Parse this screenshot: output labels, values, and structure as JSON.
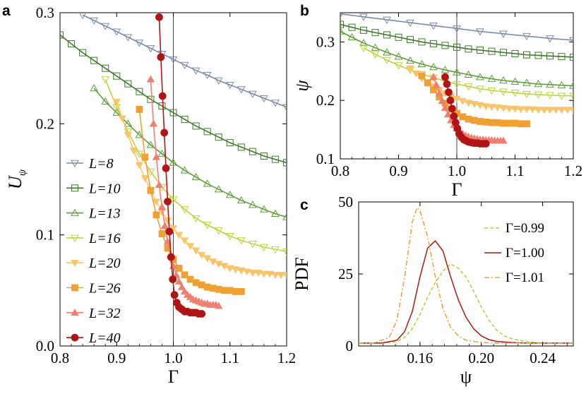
{
  "colors": {
    "L8": "#7b8aa6",
    "L10": "#3f7a2a",
    "L13": "#5f9e3a",
    "L16": "#bfd33a",
    "L20": "#f9c46a",
    "L26": "#f0a030",
    "L32": "#ee8070",
    "L40": "#b01515",
    "pdf099": "#b5cc3a",
    "pdf100": "#b01515",
    "pdf101": "#e8a030"
  },
  "panels": {
    "a": "a",
    "b": "b",
    "c": "c"
  },
  "chart_data": [
    {
      "id": "a",
      "type": "line",
      "xlabel": "Γ",
      "ylabel": "U",
      "ylabel_sub": "ψ",
      "xlim": [
        0.8,
        1.2
      ],
      "ylim": [
        0.0,
        0.3
      ],
      "xticks": [
        "0.8",
        "0.9",
        "1.0",
        "1.1",
        "1.2"
      ],
      "yticks": [
        "0.0",
        "0.1",
        "0.2",
        "0.3"
      ],
      "vline": 1.0,
      "legend_position": "left",
      "series": [
        {
          "L": 8,
          "label": "L=8",
          "color_key": "L8",
          "marker": "triangle-down-open",
          "x": [
            0.84,
            0.86,
            0.88,
            0.9,
            0.92,
            0.94,
            0.96,
            0.98,
            1.0,
            1.02,
            1.04,
            1.06,
            1.08,
            1.1,
            1.12,
            1.14,
            1.16,
            1.18,
            1.2
          ],
          "y": [
            0.298,
            0.293,
            0.288,
            0.283,
            0.278,
            0.273,
            0.268,
            0.263,
            0.258,
            0.253,
            0.248,
            0.244,
            0.239,
            0.235,
            0.231,
            0.227,
            0.223,
            0.219,
            0.215
          ]
        },
        {
          "L": 10,
          "label": "L=10",
          "color_key": "L10",
          "marker": "square-open",
          "x": [
            0.8,
            0.82,
            0.84,
            0.86,
            0.88,
            0.9,
            0.92,
            0.94,
            0.96,
            0.98,
            1.0,
            1.02,
            1.04,
            1.06,
            1.08,
            1.1,
            1.12,
            1.14,
            1.16,
            1.18,
            1.2
          ],
          "y": [
            0.28,
            0.272,
            0.264,
            0.257,
            0.25,
            0.243,
            0.236,
            0.229,
            0.222,
            0.216,
            0.21,
            0.204,
            0.198,
            0.193,
            0.188,
            0.183,
            0.179,
            0.175,
            0.171,
            0.168,
            0.165
          ]
        },
        {
          "L": 13,
          "label": "L=13",
          "color_key": "L13",
          "marker": "triangle-up-open",
          "x": [
            0.86,
            0.88,
            0.9,
            0.92,
            0.94,
            0.96,
            0.98,
            1.0,
            1.02,
            1.04,
            1.06,
            1.08,
            1.1,
            1.12,
            1.14,
            1.16,
            1.18,
            1.2
          ],
          "y": [
            0.232,
            0.22,
            0.21,
            0.2,
            0.19,
            0.181,
            0.173,
            0.165,
            0.158,
            0.152,
            0.146,
            0.141,
            0.136,
            0.131,
            0.127,
            0.123,
            0.119,
            0.116
          ]
        },
        {
          "L": 16,
          "label": "L=16",
          "color_key": "L16",
          "marker": "triangle-down-open",
          "x": [
            0.88,
            0.9,
            0.92,
            0.94,
            0.96,
            0.98,
            1.0,
            1.02,
            1.04,
            1.06,
            1.08,
            1.1,
            1.12,
            1.14,
            1.16,
            1.18,
            1.2
          ],
          "y": [
            0.24,
            0.215,
            0.193,
            0.173,
            0.157,
            0.143,
            0.132,
            0.123,
            0.115,
            0.109,
            0.104,
            0.099,
            0.095,
            0.092,
            0.089,
            0.087,
            0.085
          ]
        },
        {
          "L": 20,
          "label": "L=20",
          "color_key": "L20",
          "marker": "triangle-down-filled",
          "x": [
            0.9,
            0.91,
            0.92,
            0.93,
            0.94,
            0.95,
            0.96,
            0.97,
            0.98,
            0.99,
            1.0,
            1.01,
            1.02,
            1.03,
            1.04,
            1.05,
            1.06,
            1.07,
            1.08,
            1.09,
            1.1,
            1.11,
            1.12,
            1.13,
            1.14,
            1.15,
            1.16,
            1.17,
            1.18,
            1.19,
            1.2
          ],
          "y": [
            0.22,
            0.205,
            0.19,
            0.176,
            0.163,
            0.151,
            0.14,
            0.13,
            0.121,
            0.113,
            0.106,
            0.1,
            0.095,
            0.09,
            0.086,
            0.082,
            0.079,
            0.076,
            0.074,
            0.072,
            0.07,
            0.069,
            0.068,
            0.067,
            0.066,
            0.066,
            0.065,
            0.065,
            0.064,
            0.064,
            0.064
          ]
        },
        {
          "L": 26,
          "label": "L=26",
          "color_key": "L26",
          "marker": "square-filled",
          "x": [
            0.94,
            0.95,
            0.96,
            0.97,
            0.98,
            0.99,
            1.0,
            1.01,
            1.02,
            1.03,
            1.04,
            1.05,
            1.06,
            1.07,
            1.08,
            1.09,
            1.1,
            1.11,
            1.12
          ],
          "y": [
            0.213,
            0.17,
            0.14,
            0.118,
            0.101,
            0.088,
            0.078,
            0.07,
            0.064,
            0.06,
            0.057,
            0.055,
            0.053,
            0.052,
            0.051,
            0.05,
            0.05,
            0.049,
            0.049
          ]
        },
        {
          "L": 32,
          "label": "L=32",
          "color_key": "L32",
          "marker": "triangle-up-filled",
          "x": [
            0.96,
            0.965,
            0.97,
            0.975,
            0.98,
            0.985,
            0.99,
            0.995,
            1.0,
            1.005,
            1.01,
            1.015,
            1.02,
            1.025,
            1.03,
            1.035,
            1.04,
            1.045,
            1.05,
            1.055,
            1.06,
            1.065,
            1.07,
            1.075,
            1.08
          ],
          "y": [
            0.24,
            0.2,
            0.17,
            0.145,
            0.125,
            0.108,
            0.094,
            0.082,
            0.072,
            0.064,
            0.058,
            0.053,
            0.049,
            0.046,
            0.044,
            0.042,
            0.041,
            0.04,
            0.039,
            0.038,
            0.038,
            0.037,
            0.037,
            0.037,
            0.036
          ]
        },
        {
          "L": 40,
          "label": "L=40",
          "color_key": "L40",
          "marker": "circle-filled",
          "x": [
            0.975,
            0.978,
            0.981,
            0.984,
            0.987,
            0.99,
            0.993,
            0.996,
            0.999,
            1.002,
            1.006,
            1.01,
            1.015,
            1.02,
            1.025,
            1.03,
            1.035,
            1.04,
            1.045,
            1.05
          ],
          "y": [
            0.296,
            0.26,
            0.225,
            0.192,
            0.16,
            0.13,
            0.103,
            0.08,
            0.06,
            0.046,
            0.039,
            0.035,
            0.033,
            0.031,
            0.031,
            0.03,
            0.03,
            0.03,
            0.029,
            0.029
          ]
        }
      ]
    },
    {
      "id": "b",
      "type": "line",
      "xlabel": "Γ",
      "ylabel": "ψ",
      "xlim": [
        0.8,
        1.2
      ],
      "ylim": [
        0.1,
        0.35
      ],
      "xticks": [
        "0.8",
        "0.9",
        "1.0",
        "1.1",
        "1.2"
      ],
      "yticks": [
        "0.1",
        "0.2",
        "0.3"
      ],
      "vline": 1.0,
      "series": [
        {
          "L": 8,
          "color_key": "L8",
          "marker": "triangle-down-open",
          "x": [
            0.8,
            0.84,
            0.88,
            0.92,
            0.96,
            1.0,
            1.04,
            1.08,
            1.12,
            1.16,
            1.2
          ],
          "y": [
            0.348,
            0.343,
            0.338,
            0.333,
            0.328,
            0.323,
            0.318,
            0.314,
            0.31,
            0.306,
            0.303
          ]
        },
        {
          "L": 10,
          "color_key": "L10",
          "marker": "square-open",
          "x": [
            0.8,
            0.82,
            0.84,
            0.86,
            0.88,
            0.9,
            0.92,
            0.94,
            0.96,
            0.98,
            1.0,
            1.02,
            1.04,
            1.06,
            1.08,
            1.1,
            1.12,
            1.14,
            1.16,
            1.18,
            1.2
          ],
          "y": [
            0.33,
            0.325,
            0.32,
            0.316,
            0.312,
            0.308,
            0.304,
            0.3,
            0.297,
            0.294,
            0.291,
            0.288,
            0.286,
            0.284,
            0.282,
            0.28,
            0.278,
            0.277,
            0.276,
            0.275,
            0.274
          ]
        },
        {
          "L": 13,
          "color_key": "L13",
          "marker": "triangle-up-open",
          "x": [
            0.8,
            0.82,
            0.84,
            0.86,
            0.88,
            0.9,
            0.92,
            0.94,
            0.96,
            0.98,
            1.0,
            1.02,
            1.04,
            1.06,
            1.08,
            1.1,
            1.12,
            1.14,
            1.16,
            1.18,
            1.2
          ],
          "y": [
            0.318,
            0.308,
            0.298,
            0.29,
            0.282,
            0.275,
            0.268,
            0.262,
            0.257,
            0.252,
            0.248,
            0.244,
            0.24,
            0.237,
            0.234,
            0.232,
            0.23,
            0.228,
            0.227,
            0.226,
            0.225
          ]
        },
        {
          "L": 16,
          "color_key": "L16",
          "marker": "triangle-down-open",
          "x": [
            0.84,
            0.86,
            0.88,
            0.9,
            0.92,
            0.94,
            0.96,
            0.98,
            1.0,
            1.02,
            1.04,
            1.06,
            1.08,
            1.1,
            1.12,
            1.14,
            1.16,
            1.18,
            1.2
          ],
          "y": [
            0.29,
            0.279,
            0.269,
            0.26,
            0.252,
            0.245,
            0.239,
            0.233,
            0.228,
            0.224,
            0.22,
            0.217,
            0.215,
            0.213,
            0.211,
            0.21,
            0.209,
            0.208,
            0.208
          ]
        },
        {
          "L": 20,
          "color_key": "L20",
          "marker": "triangle-down-filled",
          "x": [
            0.92,
            0.93,
            0.94,
            0.95,
            0.96,
            0.97,
            0.98,
            0.99,
            1.0,
            1.01,
            1.02,
            1.03,
            1.04,
            1.05,
            1.06,
            1.07,
            1.08,
            1.09,
            1.1,
            1.11,
            1.12,
            1.13,
            1.14,
            1.15,
            1.16,
            1.17,
            1.18,
            1.19,
            1.2
          ],
          "y": [
            0.255,
            0.246,
            0.238,
            0.231,
            0.224,
            0.218,
            0.212,
            0.207,
            0.203,
            0.199,
            0.196,
            0.194,
            0.192,
            0.19,
            0.189,
            0.188,
            0.187,
            0.186,
            0.186,
            0.185,
            0.185,
            0.185,
            0.184,
            0.184,
            0.184,
            0.184,
            0.184,
            0.184,
            0.184
          ]
        },
        {
          "L": 26,
          "color_key": "L26",
          "marker": "square-filled",
          "x": [
            0.94,
            0.95,
            0.96,
            0.97,
            0.98,
            0.99,
            1.0,
            1.01,
            1.02,
            1.03,
            1.04,
            1.05,
            1.06,
            1.07,
            1.08,
            1.09,
            1.1,
            1.11,
            1.12
          ],
          "y": [
            0.242,
            0.23,
            0.218,
            0.206,
            0.195,
            0.185,
            0.178,
            0.172,
            0.168,
            0.166,
            0.164,
            0.163,
            0.162,
            0.162,
            0.161,
            0.161,
            0.161,
            0.16,
            0.16
          ]
        },
        {
          "L": 32,
          "color_key": "L32",
          "marker": "triangle-up-filled",
          "x": [
            0.96,
            0.965,
            0.97,
            0.975,
            0.98,
            0.985,
            0.99,
            0.995,
            1.0,
            1.005,
            1.01,
            1.015,
            1.02,
            1.025,
            1.03,
            1.035,
            1.04,
            1.045,
            1.05,
            1.055,
            1.06,
            1.065,
            1.07,
            1.075,
            1.08
          ],
          "y": [
            0.24,
            0.226,
            0.212,
            0.199,
            0.187,
            0.176,
            0.166,
            0.158,
            0.152,
            0.147,
            0.143,
            0.14,
            0.138,
            0.136,
            0.135,
            0.134,
            0.133,
            0.133,
            0.132,
            0.132,
            0.132,
            0.131,
            0.131,
            0.131,
            0.131
          ]
        },
        {
          "L": 40,
          "color_key": "L40",
          "marker": "circle-filled",
          "x": [
            0.98,
            0.983,
            0.986,
            0.989,
            0.992,
            0.995,
            0.998,
            1.001,
            1.004,
            1.008,
            1.012,
            1.016,
            1.02,
            1.025,
            1.03,
            1.035,
            1.04,
            1.045,
            1.05
          ],
          "y": [
            0.24,
            0.228,
            0.214,
            0.2,
            0.186,
            0.173,
            0.162,
            0.152,
            0.143,
            0.137,
            0.133,
            0.131,
            0.129,
            0.128,
            0.127,
            0.127,
            0.126,
            0.126,
            0.126
          ]
        }
      ]
    },
    {
      "id": "c",
      "type": "line",
      "xlabel": "ψ",
      "ylabel": "PDF",
      "xlim": [
        0.12,
        0.26
      ],
      "ylim": [
        0,
        50
      ],
      "xticks": [
        "0.16",
        "0.20",
        "0.24"
      ],
      "yticks": [
        "0",
        "25",
        "50"
      ],
      "legend_position": "top-right",
      "series": [
        {
          "name": "Γ=0.99",
          "color_key": "pdf099",
          "dash": "dashed",
          "x": [
            0.12,
            0.135,
            0.145,
            0.15,
            0.155,
            0.16,
            0.165,
            0.17,
            0.175,
            0.18,
            0.185,
            0.19,
            0.195,
            0.2,
            0.205,
            0.21,
            0.215,
            0.22,
            0.23,
            0.24,
            0.25,
            0.26
          ],
          "y": [
            1,
            1,
            1.5,
            3,
            6,
            11,
            17,
            22,
            26,
            28.5,
            27,
            24,
            19,
            13.5,
            9,
            5.5,
            3.5,
            2.5,
            1.5,
            1,
            1,
            1
          ]
        },
        {
          "name": "Γ=1.00",
          "color_key": "pdf100",
          "dash": "solid",
          "x": [
            0.12,
            0.135,
            0.145,
            0.15,
            0.155,
            0.16,
            0.165,
            0.17,
            0.175,
            0.18,
            0.185,
            0.19,
            0.195,
            0.2,
            0.205,
            0.21,
            0.22,
            0.23,
            0.24,
            0.26
          ],
          "y": [
            1,
            1,
            2,
            5,
            12,
            24,
            34,
            36.5,
            33,
            24,
            16,
            10,
            6,
            3.5,
            2.2,
            1.6,
            1.2,
            1,
            1,
            1
          ]
        },
        {
          "name": "Γ=1.01",
          "color_key": "pdf101",
          "dash": "dashdot",
          "x": [
            0.12,
            0.13,
            0.14,
            0.145,
            0.15,
            0.155,
            0.158,
            0.16,
            0.165,
            0.17,
            0.175,
            0.18,
            0.185,
            0.19,
            0.2,
            0.21,
            0.22,
            0.24,
            0.26
          ],
          "y": [
            1,
            1,
            3,
            9,
            24,
            43,
            48,
            47,
            38,
            24,
            13,
            6.5,
            3.5,
            2,
            1.2,
            1,
            1,
            1,
            1
          ]
        }
      ]
    }
  ]
}
